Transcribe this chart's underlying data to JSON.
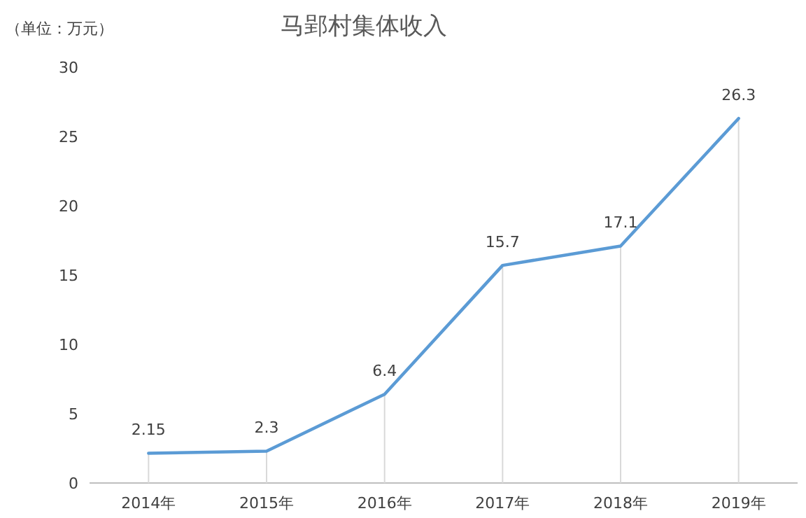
{
  "chart_data": {
    "type": "line",
    "title": "马郢村集体收入",
    "ylabel": "（单位：万元）",
    "categories": [
      "2014年",
      "2015年",
      "2016年",
      "2017年",
      "2018年",
      "2019年"
    ],
    "series": [
      {
        "color": "#5b9bd5",
        "values": [
          2.15,
          2.3,
          6.4,
          15.7,
          17.1,
          26.3
        ]
      }
    ],
    "ylim": [
      0,
      30
    ],
    "yticks": [
      0,
      5,
      10,
      15,
      20,
      25,
      30
    ],
    "data_labels": true,
    "marker": "none",
    "line_style": "solid",
    "grid": "x"
  }
}
